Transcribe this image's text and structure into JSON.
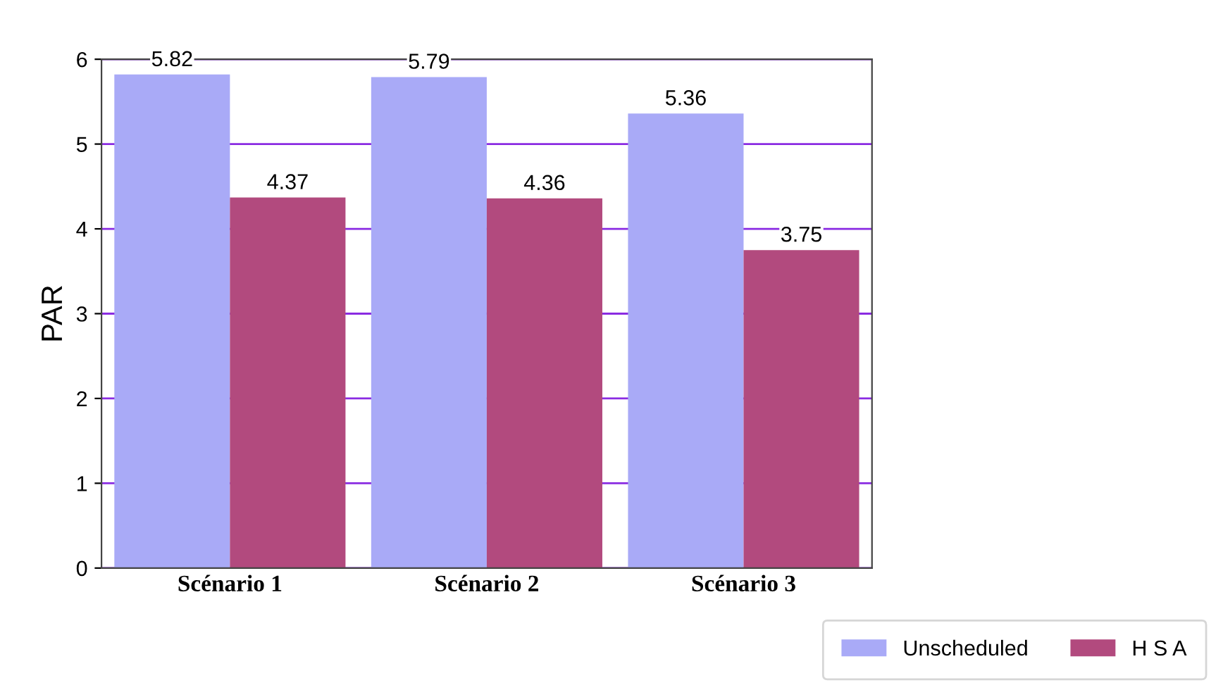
{
  "chart_data": {
    "type": "bar",
    "ylabel": "PAR",
    "categories": [
      "Scénario 1",
      "Scénario 2",
      "Scénario 3"
    ],
    "series": [
      {
        "name": "Unscheduled",
        "color": "#a9aaf7",
        "values": [
          5.82,
          5.79,
          5.36
        ]
      },
      {
        "name": "H S A",
        "color": "#b24a7e",
        "values": [
          4.37,
          4.36,
          3.75
        ]
      }
    ],
    "ylim": [
      0,
      6
    ],
    "yticks": [
      0,
      1,
      2,
      3,
      4,
      5,
      6
    ],
    "grid": "y",
    "legend": "bottom right",
    "data_labels": true
  }
}
